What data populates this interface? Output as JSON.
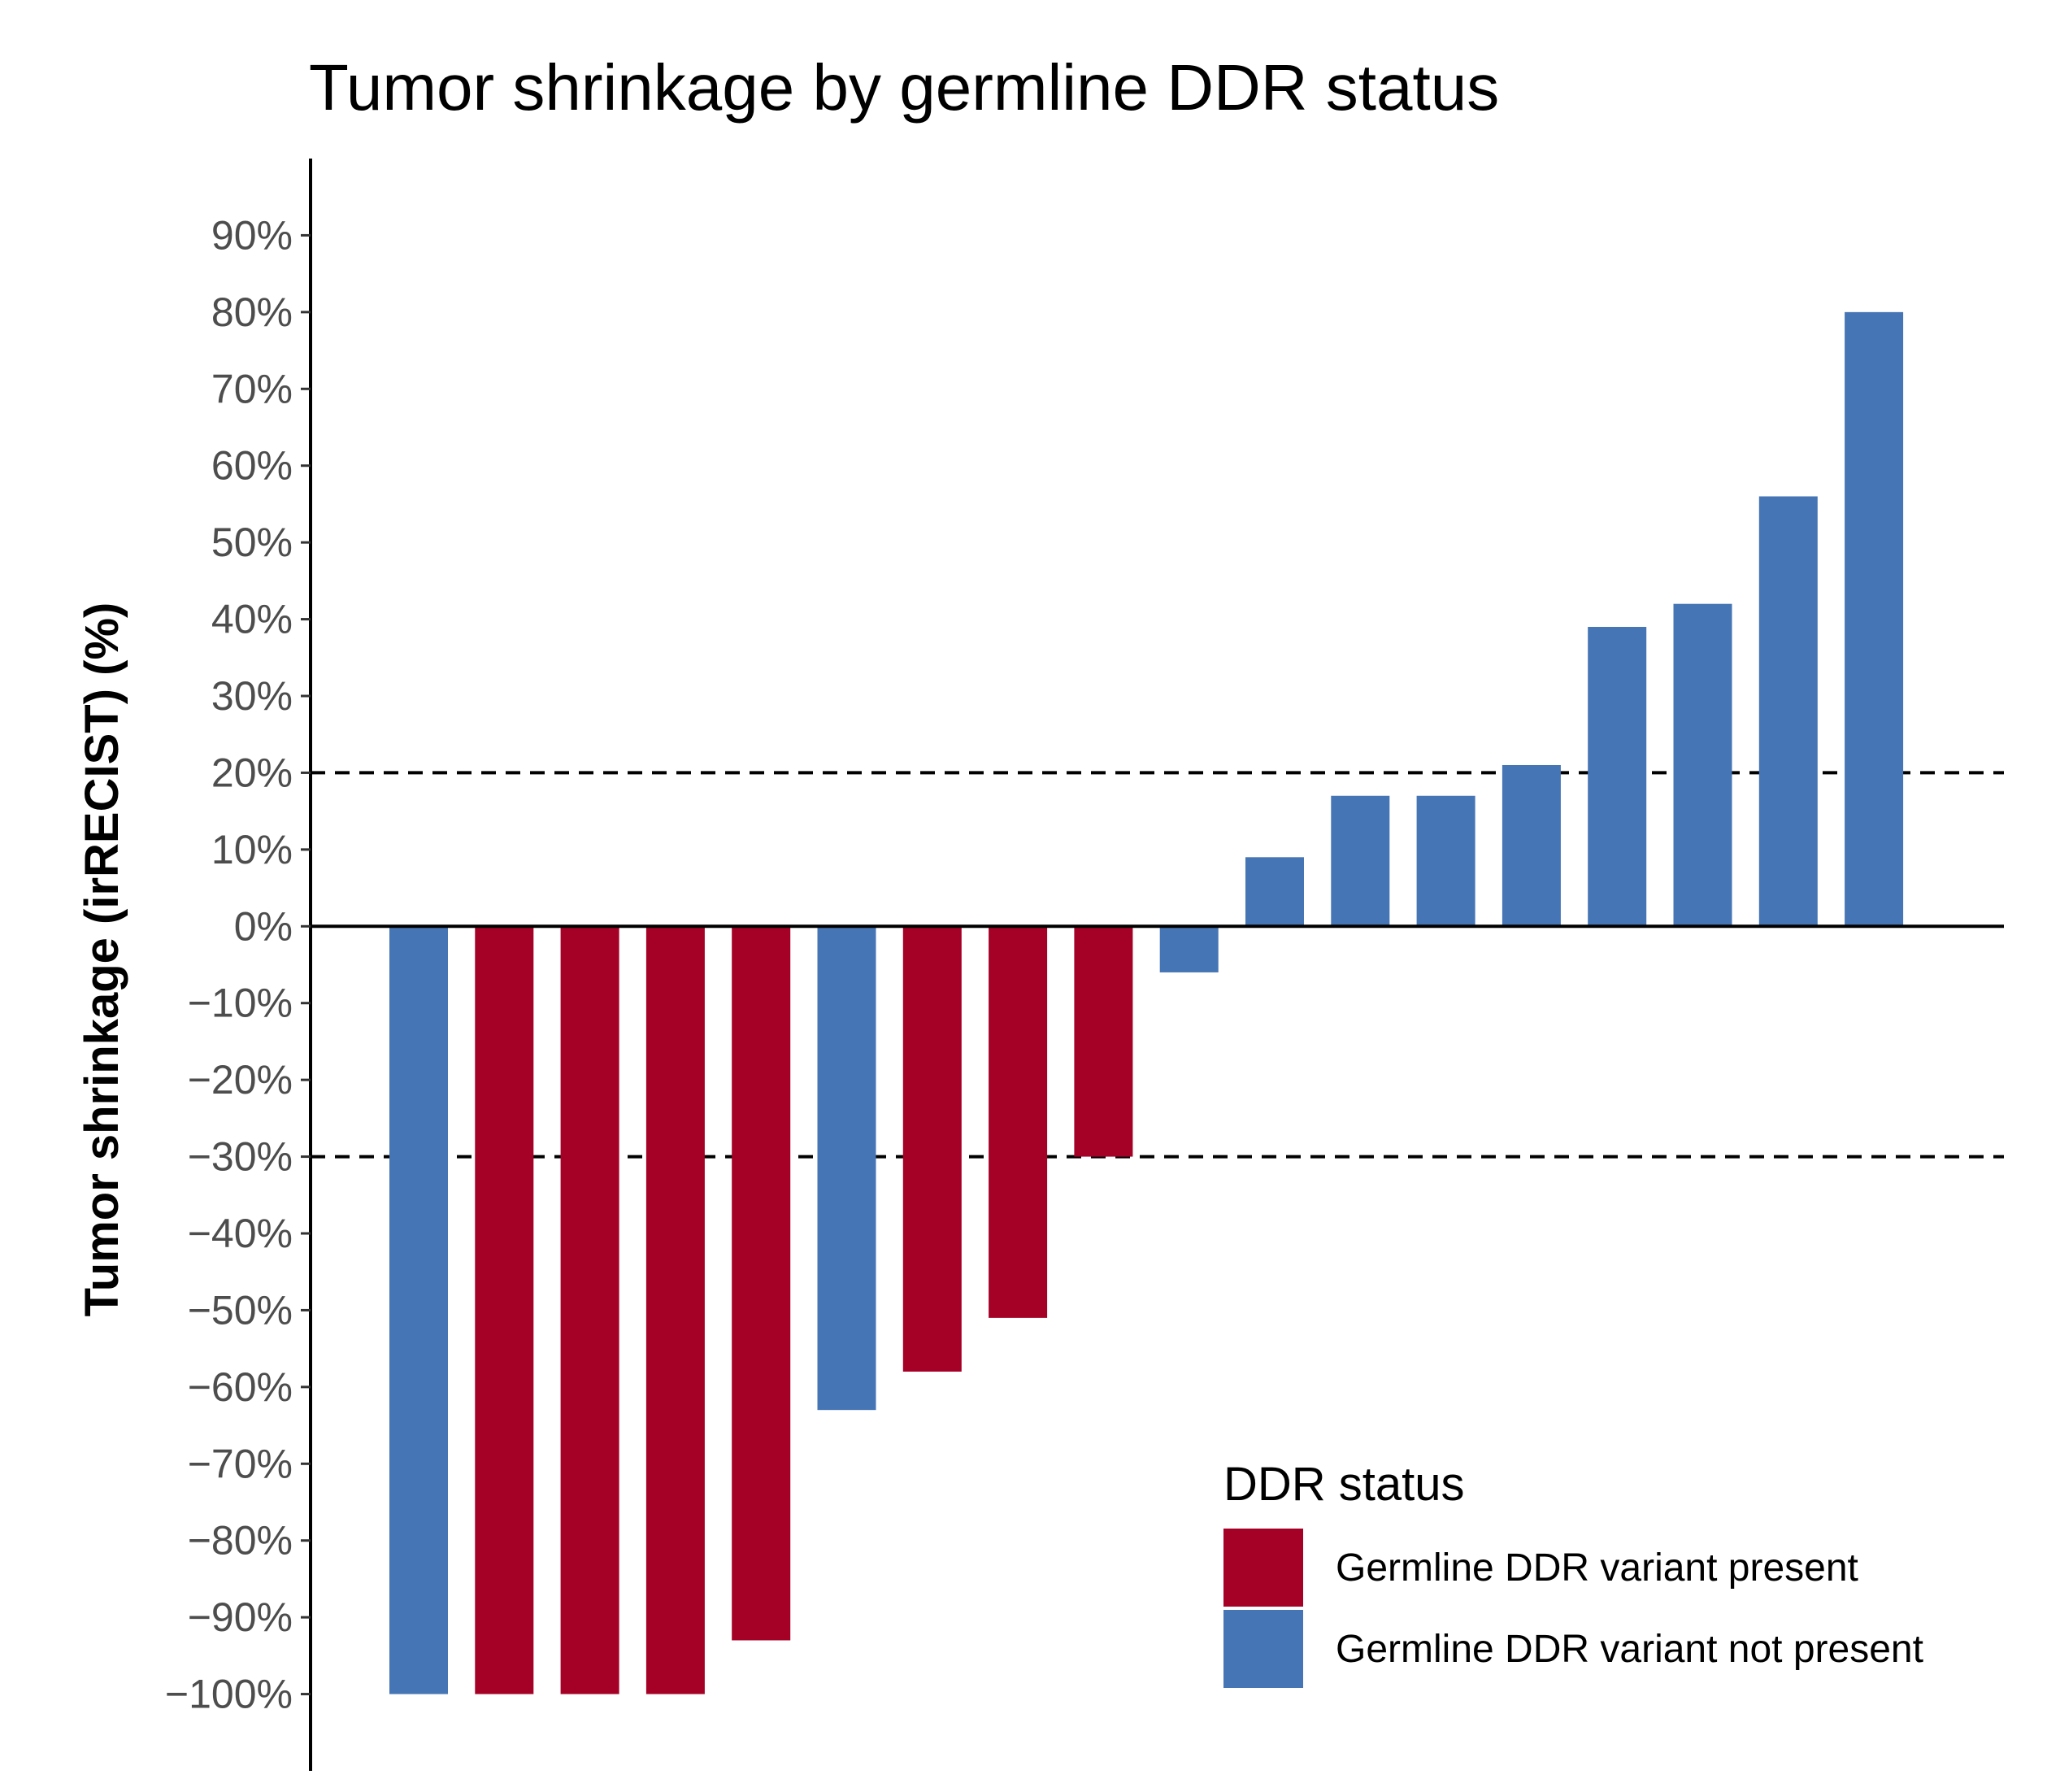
{
  "chart_data": {
    "type": "bar",
    "title": "Tumor shrinkage by germline DDR status",
    "xlabel": "",
    "ylabel": "Tumor shrinkage (irRECIST) (%)",
    "ylim": [
      -110,
      100
    ],
    "yticks": [
      90,
      80,
      70,
      60,
      50,
      40,
      30,
      20,
      10,
      0,
      -10,
      -20,
      -30,
      -40,
      -50,
      -60,
      -70,
      -80,
      -90,
      -100
    ],
    "ytick_labels": [
      "90%",
      "80%",
      "70%",
      "60%",
      "50%",
      "40%",
      "30%",
      "20%",
      "10%",
      "0%",
      "−10%",
      "−20%",
      "−30%",
      "−40%",
      "−50%",
      "−60%",
      "−70%",
      "−80%",
      "−90%",
      "−100%"
    ],
    "reference_lines": [
      20,
      -30
    ],
    "bars": [
      {
        "value": -100,
        "group": "not_present"
      },
      {
        "value": -100,
        "group": "present"
      },
      {
        "value": -100,
        "group": "present"
      },
      {
        "value": -100,
        "group": "present"
      },
      {
        "value": -93,
        "group": "present"
      },
      {
        "value": -63,
        "group": "not_present"
      },
      {
        "value": -58,
        "group": "present"
      },
      {
        "value": -51,
        "group": "present"
      },
      {
        "value": -30,
        "group": "present"
      },
      {
        "value": -6,
        "group": "not_present"
      },
      {
        "value": 9,
        "group": "not_present"
      },
      {
        "value": 17,
        "group": "not_present"
      },
      {
        "value": 17,
        "group": "not_present"
      },
      {
        "value": 21,
        "group": "not_present"
      },
      {
        "value": 39,
        "group": "not_present"
      },
      {
        "value": 42,
        "group": "not_present"
      },
      {
        "value": 56,
        "group": "not_present"
      },
      {
        "value": 80,
        "group": "not_present"
      }
    ],
    "legend": {
      "title": "DDR status",
      "position": "bottom-right",
      "entries": [
        {
          "key": "present",
          "label": "Germline DDR variant present",
          "color": "#a50026"
        },
        {
          "key": "not_present",
          "label": "Germline DDR variant not present",
          "color": "#4575b4"
        }
      ]
    }
  }
}
